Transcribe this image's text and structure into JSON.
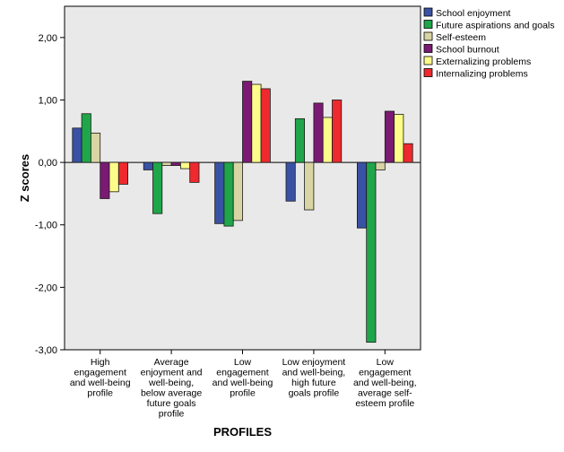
{
  "chart_data": {
    "type": "bar",
    "title": "",
    "xlabel": "PROFILES",
    "ylabel": "Z scores",
    "ylim": [
      -3.0,
      2.5
    ],
    "yticks": [
      -3.0,
      -2.0,
      -1.0,
      0.0,
      1.0,
      2.0
    ],
    "ytick_labels": [
      "-3,00",
      "-2,00",
      "-1,00",
      "0,00",
      "1,00",
      "2,00"
    ],
    "grid": false,
    "legend_position": "top-right",
    "categories": [
      [
        "High",
        "engagement",
        "and well-being",
        "profile"
      ],
      [
        "Average",
        "enjoyment and",
        "well-being,",
        "below average",
        "future goals",
        "profile"
      ],
      [
        "Low",
        "engagement",
        "and well-being",
        "profile"
      ],
      [
        "Low enjoyment",
        "and well-being,",
        "high future",
        "goals profile"
      ],
      [
        "Low",
        "engagement",
        "and well-being,",
        "average self-",
        "esteem profile"
      ]
    ],
    "series": [
      {
        "name": "School enjoyment",
        "color": "#3a52a4",
        "values": [
          0.55,
          -0.12,
          -0.98,
          -0.62,
          -1.05
        ]
      },
      {
        "name": "Future aspirations and goals",
        "color": "#1fa64a",
        "values": [
          0.78,
          -0.82,
          -1.02,
          0.7,
          -2.88
        ]
      },
      {
        "name": "Self-esteem",
        "color": "#d9d4a3",
        "values": [
          0.47,
          -0.05,
          -0.93,
          -0.76,
          -0.12
        ]
      },
      {
        "name": "School burnout",
        "color": "#7a1a72",
        "values": [
          -0.58,
          -0.05,
          1.3,
          0.95,
          0.82
        ]
      },
      {
        "name": "Externalizing problems",
        "color": "#fdfd8a",
        "values": [
          -0.47,
          -0.1,
          1.25,
          0.72,
          0.77
        ]
      },
      {
        "name": "Internalizing problems",
        "color": "#ee2a2f",
        "values": [
          -0.35,
          -0.32,
          1.18,
          1.0,
          0.3
        ]
      }
    ]
  },
  "colors": {
    "plot_background": "#e9e9e9",
    "bar_stroke": "#1a1a1a"
  }
}
